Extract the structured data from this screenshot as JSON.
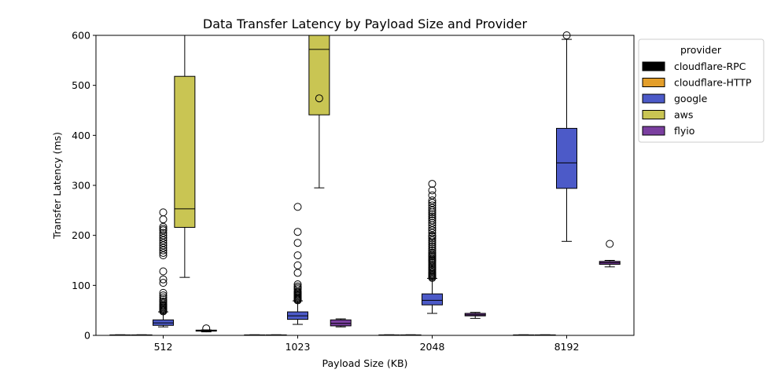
{
  "chart_data": {
    "type": "box",
    "title": "Data Transfer Latency by Payload Size and Provider",
    "xlabel": "Payload Size (KB)",
    "ylabel": "Transfer Latency (ms)",
    "ylim": [
      0,
      600
    ],
    "yticks": [
      0,
      100,
      200,
      300,
      400,
      500,
      600
    ],
    "categories": [
      "512",
      "1023",
      "2048",
      "8192"
    ],
    "legend": {
      "title": "provider",
      "placement": "outside-top-right"
    },
    "series": [
      {
        "name": "cloudflare-RPC",
        "color": "#000000",
        "boxes": [
          {
            "whislo": 0.3,
            "q1": 0.5,
            "med": 0.8,
            "q3": 1.0,
            "whishi": 1.2,
            "fliers": []
          },
          {
            "whislo": 0.3,
            "q1": 0.5,
            "med": 0.8,
            "q3": 1.0,
            "whishi": 1.2,
            "fliers": []
          },
          {
            "whislo": 0.3,
            "q1": 0.5,
            "med": 0.8,
            "q3": 1.0,
            "whishi": 1.2,
            "fliers": []
          },
          {
            "whislo": 0.3,
            "q1": 0.5,
            "med": 0.8,
            "q3": 1.0,
            "whishi": 1.2,
            "fliers": []
          }
        ]
      },
      {
        "name": "cloudflare-HTTP",
        "color": "#e39e2a",
        "boxes": [
          {
            "whislo": 0.3,
            "q1": 0.5,
            "med": 0.8,
            "q3": 1.0,
            "whishi": 1.2,
            "fliers": []
          },
          {
            "whislo": 0.3,
            "q1": 0.5,
            "med": 0.8,
            "q3": 1.0,
            "whishi": 1.2,
            "fliers": []
          },
          {
            "whislo": 0.3,
            "q1": 0.5,
            "med": 0.8,
            "q3": 1.0,
            "whishi": 1.2,
            "fliers": []
          },
          {
            "whislo": 0.3,
            "q1": 0.5,
            "med": 0.8,
            "q3": 1.0,
            "whishi": 1.2,
            "fliers": []
          }
        ]
      },
      {
        "name": "google",
        "color": "#4c5ac8",
        "boxes": [
          {
            "whislo": 17,
            "q1": 20,
            "med": 25,
            "q3": 31,
            "whishi": 47,
            "fliers": [
              48,
              50,
              52,
              54,
              56,
              58,
              60,
              62,
              65,
              68,
              72,
              76,
              80,
              85,
              105,
              112,
              128,
              160,
              165,
              170,
              175,
              180,
              185,
              190,
              195,
              200,
              205,
              210,
              213,
              217,
              232,
              246
            ]
          },
          {
            "whislo": 22,
            "q1": 32,
            "med": 39,
            "q3": 47,
            "whishi": 69,
            "fliers": [
              70,
              72,
              74,
              76,
              78,
              80,
              82,
              84,
              86,
              88,
              92,
              95,
              98,
              102,
              125,
              140,
              160,
              185,
              207,
              257
            ]
          },
          {
            "whislo": 44,
            "q1": 61,
            "med": 70,
            "q3": 83,
            "whishi": 114,
            "fliers": [
              115,
              117,
              119,
              121,
              123,
              125,
              127,
              130,
              133,
              136,
              139,
              142,
              145,
              148,
              150,
              152,
              155,
              158,
              160,
              163,
              166,
              170,
              174,
              178,
              182,
              186,
              190,
              194,
              198,
              200,
              205,
              210,
              215,
              220,
              225,
              230,
              234,
              238,
              242,
              246,
              250,
              255,
              260,
              265,
              270,
              280,
              290,
              303
            ]
          },
          {
            "whislo": 188,
            "q1": 294,
            "med": 345,
            "q3": 414,
            "whishi": 592,
            "fliers": [
              600
            ]
          }
        ]
      },
      {
        "name": "aws",
        "color": "#c9c553",
        "boxes": [
          {
            "whislo": 116,
            "q1": 216,
            "med": 253,
            "q3": 518,
            "whishi": 600,
            "fliers": []
          },
          {
            "whislo": 295,
            "q1": 441,
            "med": 572,
            "q3": 600,
            "whishi": 600,
            "fliers": [
              474
            ]
          },
          null,
          null
        ]
      },
      {
        "name": "flyio",
        "color": "#7b3fa0",
        "boxes": [
          {
            "whislo": 7,
            "q1": 8.5,
            "med": 9.5,
            "q3": 10.5,
            "whishi": 11,
            "fliers": [
              14
            ]
          },
          {
            "whislo": 17,
            "q1": 19,
            "med": 24,
            "q3": 31,
            "whishi": 33,
            "fliers": []
          },
          {
            "whislo": 34,
            "q1": 39,
            "med": 41,
            "q3": 44,
            "whishi": 46,
            "fliers": []
          },
          {
            "whislo": 137,
            "q1": 142,
            "med": 145,
            "q3": 148,
            "whishi": 150,
            "fliers": [
              183
            ]
          }
        ]
      }
    ]
  }
}
